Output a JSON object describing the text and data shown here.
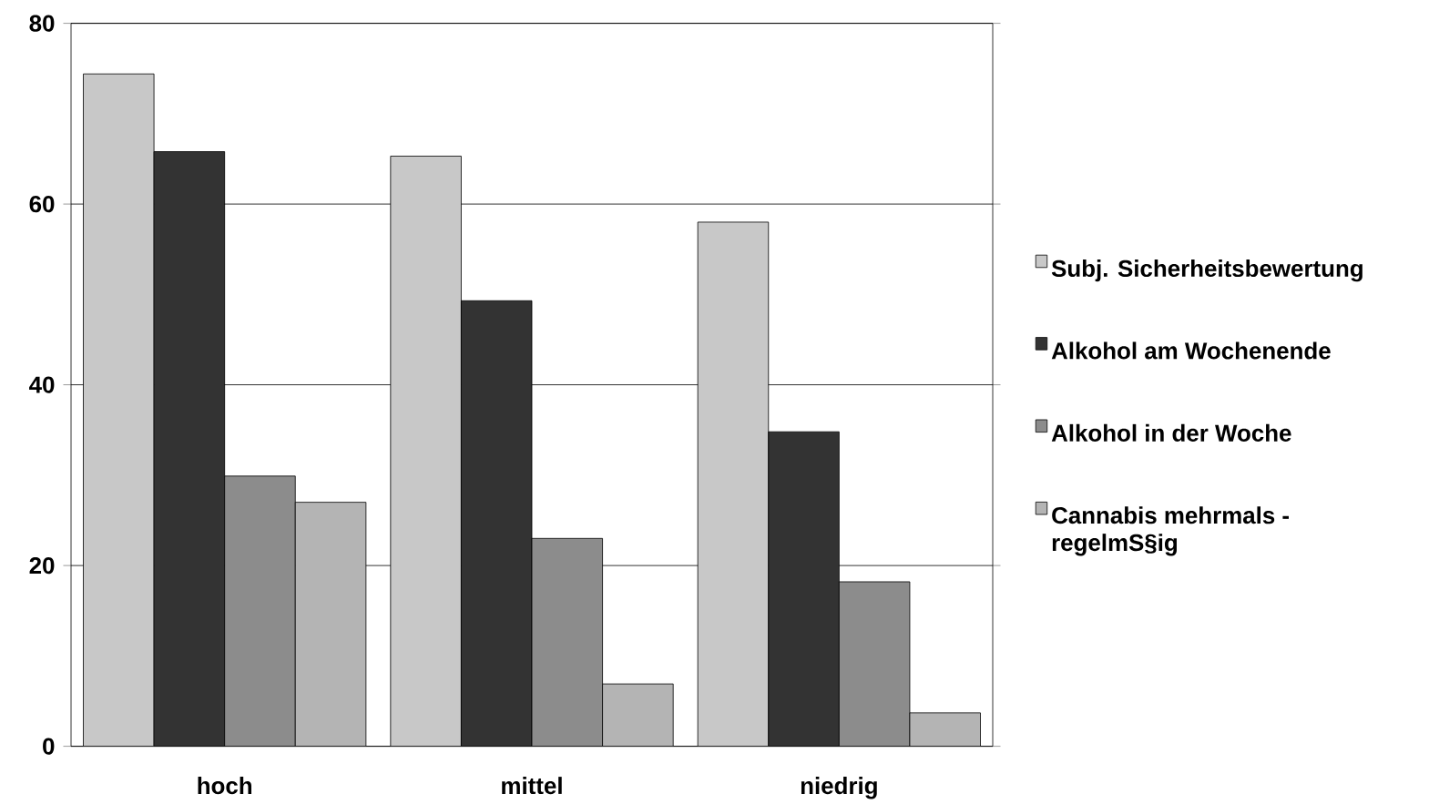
{
  "chart_data": {
    "type": "bar",
    "categories": [
      "hoch",
      "mittel",
      "niedrig"
    ],
    "series": [
      {
        "name": "Subj. Sicherheitsbewertung",
        "color": "#c8c8c8",
        "values": [
          74.4,
          65.3,
          58
        ]
      },
      {
        "name": "Alkohol am Wochenende",
        "color": "#333333",
        "values": [
          65.8,
          49.3,
          34.8
        ]
      },
      {
        "name": "Alkohol in der Woche",
        "color": "#8c8c8c",
        "values": [
          29.9,
          23,
          18.2
        ]
      },
      {
        "name": "Cannabis mehrmals - regelmS§ig",
        "color": "#b4b4b4",
        "values": [
          27,
          6.9,
          3.7
        ]
      }
    ],
    "ylim": [
      0,
      80
    ],
    "yticks": [
      0,
      20,
      40,
      60,
      80
    ],
    "grid": "y",
    "legend": "right"
  }
}
